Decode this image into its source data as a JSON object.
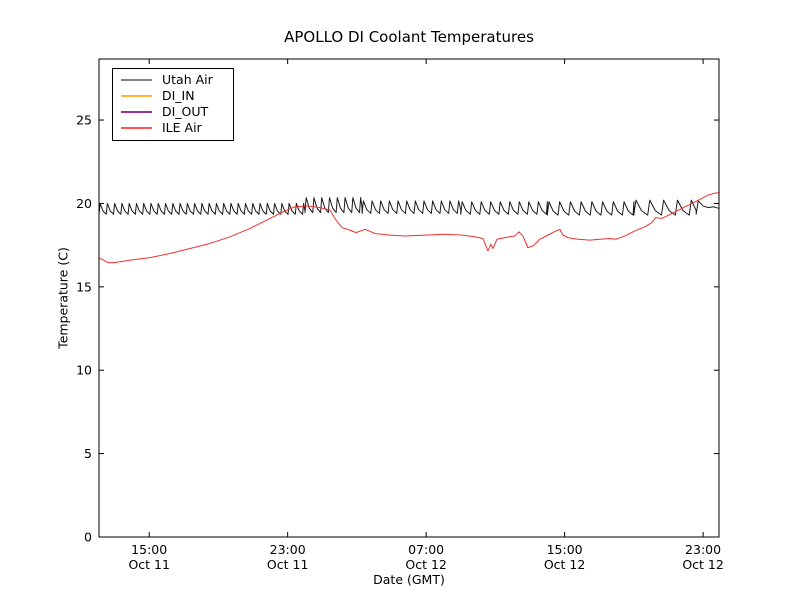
{
  "title": "APOLLO DI Coolant Temperatures",
  "chart_data": {
    "type": "line",
    "title": "APOLLO DI Coolant Temperatures",
    "xlabel": "Date (GMT)",
    "ylabel": "Temperature (C)",
    "x_unit_note": "hours since Oct 11 00:00 GMT",
    "xlim": [
      12.1,
      47.92
    ],
    "ylim": [
      0,
      28.66
    ],
    "grid": false,
    "tick_direction": "in",
    "legend_position": "upper-left",
    "background_color": "#ffffff",
    "axis_color": "#000000",
    "x_ticks": [
      {
        "value": 15,
        "time": "15:00",
        "date": "Oct 11"
      },
      {
        "value": 23,
        "time": "23:00",
        "date": "Oct 11"
      },
      {
        "value": 31,
        "time": "07:00",
        "date": "Oct 12"
      },
      {
        "value": 39,
        "time": "15:00",
        "date": "Oct 12"
      },
      {
        "value": 47,
        "time": "23:00",
        "date": "Oct 12"
      }
    ],
    "y_ticks": [
      0,
      5,
      10,
      15,
      20,
      25
    ],
    "series": [
      {
        "name": "Utah Air",
        "color": "#1a1a1a",
        "legend_color": "#808080",
        "shape": "sawtooth-oscillation",
        "description": "thermostat-style oscillation around 19.7 C across full range",
        "segments": [
          {
            "t0": 12.1,
            "t1": 24.0,
            "period": 0.42,
            "min": 19.35,
            "max": 20.0
          },
          {
            "t0": 24.0,
            "t1": 27.3,
            "period": 0.45,
            "min": 19.45,
            "max": 20.35
          },
          {
            "t0": 27.3,
            "t1": 33.0,
            "period": 0.5,
            "min": 19.4,
            "max": 20.15
          },
          {
            "t0": 33.0,
            "t1": 38.0,
            "period": 0.55,
            "min": 19.35,
            "max": 20.1
          },
          {
            "t0": 38.0,
            "t1": 43.0,
            "period": 0.62,
            "min": 19.3,
            "max": 20.1
          },
          {
            "t0": 43.0,
            "t1": 46.6,
            "period": 0.8,
            "min": 19.3,
            "max": 20.2
          }
        ],
        "tail_points": [
          [
            46.6,
            19.35
          ],
          [
            46.72,
            20.15
          ],
          [
            47.0,
            19.85
          ],
          [
            47.3,
            19.75
          ],
          [
            47.6,
            19.8
          ],
          [
            47.92,
            19.7
          ]
        ]
      },
      {
        "name": "DI_IN",
        "color": "#ffa500",
        "legend_color": "#ffb43b",
        "points": [
          [
            12.1,
            0
          ],
          [
            47.92,
            0
          ]
        ]
      },
      {
        "name": "DI_OUT",
        "color": "#800080",
        "legend_color": "#993399",
        "points": [
          [
            12.1,
            0
          ],
          [
            47.92,
            0
          ]
        ]
      },
      {
        "name": "ILE Air",
        "color": "#f03030",
        "legend_color": "#ff5555",
        "points": [
          [
            12.1,
            16.75
          ],
          [
            12.62,
            16.45
          ],
          [
            13.0,
            16.45
          ],
          [
            13.89,
            16.6
          ],
          [
            15.05,
            16.75
          ],
          [
            16.2,
            17.0
          ],
          [
            17.36,
            17.3
          ],
          [
            18.51,
            17.6
          ],
          [
            19.67,
            18.0
          ],
          [
            20.82,
            18.5
          ],
          [
            21.98,
            19.1
          ],
          [
            22.85,
            19.55
          ],
          [
            23.42,
            19.8
          ],
          [
            24.17,
            19.85
          ],
          [
            24.87,
            19.75
          ],
          [
            25.45,
            19.6
          ],
          [
            25.79,
            19.0
          ],
          [
            26.14,
            18.55
          ],
          [
            26.6,
            18.4
          ],
          [
            26.95,
            18.25
          ],
          [
            27.47,
            18.45
          ],
          [
            28.04,
            18.2
          ],
          [
            28.91,
            18.1
          ],
          [
            29.78,
            18.05
          ],
          [
            30.93,
            18.1
          ],
          [
            32.09,
            18.15
          ],
          [
            33.07,
            18.1
          ],
          [
            33.82,
            18.0
          ],
          [
            34.28,
            17.9
          ],
          [
            34.57,
            17.15
          ],
          [
            34.74,
            17.55
          ],
          [
            34.86,
            17.3
          ],
          [
            35.09,
            17.85
          ],
          [
            35.55,
            17.95
          ],
          [
            36.13,
            18.05
          ],
          [
            36.36,
            18.3
          ],
          [
            36.59,
            18.05
          ],
          [
            36.88,
            17.35
          ],
          [
            37.17,
            17.45
          ],
          [
            37.57,
            17.85
          ],
          [
            38.03,
            18.1
          ],
          [
            38.5,
            18.35
          ],
          [
            38.73,
            18.45
          ],
          [
            38.9,
            18.1
          ],
          [
            39.19,
            17.95
          ],
          [
            39.77,
            17.85
          ],
          [
            40.46,
            17.8
          ],
          [
            41.04,
            17.85
          ],
          [
            41.62,
            17.9
          ],
          [
            41.96,
            17.85
          ],
          [
            42.48,
            18.05
          ],
          [
            43.06,
            18.35
          ],
          [
            43.64,
            18.6
          ],
          [
            44.04,
            18.85
          ],
          [
            44.27,
            19.15
          ],
          [
            44.62,
            19.1
          ],
          [
            45.2,
            19.4
          ],
          [
            45.77,
            19.7
          ],
          [
            46.35,
            20.0
          ],
          [
            46.93,
            20.3
          ],
          [
            47.28,
            20.5
          ],
          [
            47.62,
            20.6
          ],
          [
            47.92,
            20.65
          ]
        ]
      }
    ]
  }
}
